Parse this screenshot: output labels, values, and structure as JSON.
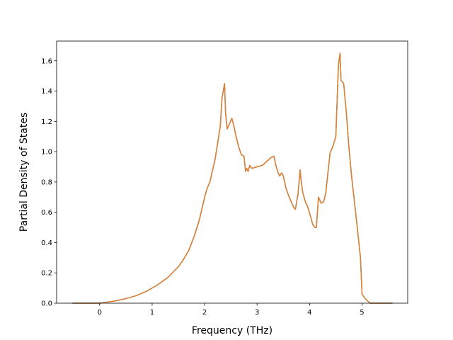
{
  "chart_data": {
    "type": "line",
    "title": "",
    "xlabel": "Frequency (THz)",
    "ylabel": "Partial Density of States",
    "xlim": [
      -0.82,
      5.87
    ],
    "ylim": [
      0.0,
      1.73
    ],
    "xticks": [
      0,
      1,
      2,
      3,
      4,
      5
    ],
    "yticks": [
      0.0,
      0.2,
      0.4,
      0.6,
      0.8,
      1.0,
      1.2,
      1.4,
      1.6
    ],
    "grid": false,
    "legend": "none",
    "series": [
      {
        "color": "#e0812f",
        "underlay_color": "#4a7fb5",
        "x": [
          -0.52,
          0.0,
          0.1,
          0.3,
          0.5,
          0.7,
          0.9,
          1.1,
          1.3,
          1.5,
          1.6,
          1.7,
          1.8,
          1.9,
          2.0,
          2.05,
          2.1,
          2.2,
          2.3,
          2.33,
          2.38,
          2.4,
          2.43,
          2.47,
          2.52,
          2.55,
          2.6,
          2.65,
          2.7,
          2.75,
          2.78,
          2.8,
          2.83,
          2.86,
          2.9,
          3.0,
          3.1,
          3.2,
          3.26,
          3.32,
          3.35,
          3.4,
          3.43,
          3.47,
          3.5,
          3.55,
          3.6,
          3.65,
          3.7,
          3.73,
          3.78,
          3.82,
          3.84,
          3.87,
          3.92,
          3.97,
          4.02,
          4.06,
          4.1,
          4.13,
          4.17,
          4.22,
          4.27,
          4.31,
          4.35,
          4.39,
          4.45,
          4.5,
          4.55,
          4.58,
          4.6,
          4.65,
          4.7,
          4.75,
          4.8,
          4.9,
          4.97,
          5.0,
          5.06,
          5.15,
          5.58
        ],
        "y": [
          0.0,
          0.0,
          0.005,
          0.015,
          0.03,
          0.05,
          0.08,
          0.12,
          0.17,
          0.24,
          0.29,
          0.35,
          0.44,
          0.55,
          0.7,
          0.76,
          0.8,
          0.95,
          1.17,
          1.35,
          1.45,
          1.25,
          1.15,
          1.18,
          1.22,
          1.18,
          1.1,
          1.03,
          0.98,
          0.97,
          0.87,
          0.89,
          0.87,
          0.91,
          0.89,
          0.9,
          0.91,
          0.94,
          0.96,
          0.97,
          0.92,
          0.86,
          0.84,
          0.86,
          0.84,
          0.76,
          0.71,
          0.67,
          0.63,
          0.62,
          0.72,
          0.88,
          0.81,
          0.73,
          0.67,
          0.63,
          0.57,
          0.52,
          0.5,
          0.5,
          0.7,
          0.66,
          0.67,
          0.73,
          0.86,
          0.99,
          1.04,
          1.1,
          1.57,
          1.65,
          1.47,
          1.45,
          1.26,
          1.03,
          0.84,
          0.53,
          0.3,
          0.06,
          0.03,
          0.0,
          0.0
        ]
      }
    ]
  }
}
